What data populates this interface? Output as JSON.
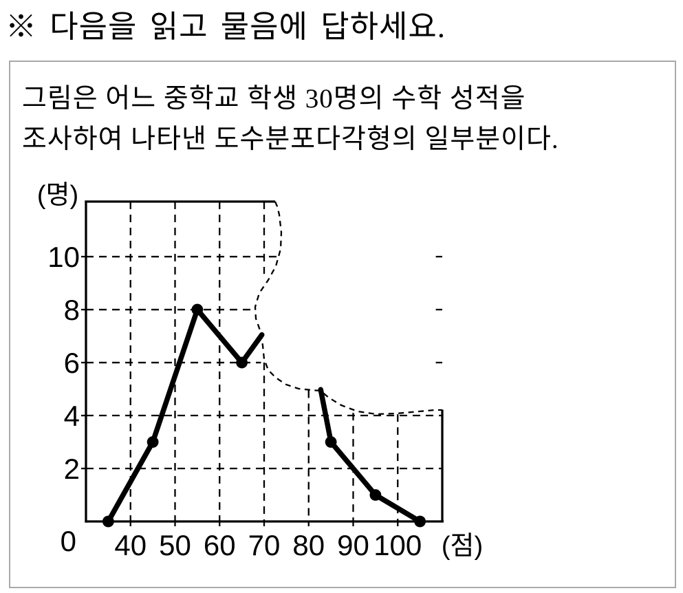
{
  "heading": {
    "text": "※ 다음을 읽고 물음에 답하세요."
  },
  "problem_box": {
    "line1": "그림은 어느 중학교 학생 30명의 수학 성적을",
    "line2": "조사하여 나타낸 도수분포다각형의 일부분이다."
  },
  "chart_data": {
    "type": "line",
    "subtype": "frequency-polygon-partially-torn",
    "xlabel": "(점)",
    "ylabel": "(명)",
    "origin_label": "0",
    "x_ticks": [
      40,
      50,
      60,
      70,
      80,
      90,
      100
    ],
    "y_ticks": [
      2,
      4,
      6,
      8,
      10
    ],
    "xlim": [
      30,
      110
    ],
    "ylim": [
      0,
      12
    ],
    "grid": "dashed",
    "points": [
      [
        35,
        0
      ],
      [
        45,
        3
      ],
      [
        55,
        8
      ],
      [
        65,
        6
      ],
      [
        85,
        3
      ],
      [
        95,
        1
      ],
      [
        105,
        0
      ]
    ],
    "visible_segments": [
      {
        "points": [
          [
            35,
            0
          ],
          [
            45,
            3
          ],
          [
            55,
            8
          ],
          [
            65,
            6
          ],
          [
            69.5,
            7.05
          ]
        ],
        "dots": [
          [
            35,
            0
          ],
          [
            45,
            3
          ],
          [
            55,
            8
          ],
          [
            65,
            6
          ]
        ],
        "note": "line rises past (65,6) and is cut off by the torn edge near score 70"
      },
      {
        "points": [
          [
            82.7,
            4.98
          ],
          [
            85,
            3
          ],
          [
            95,
            1
          ],
          [
            105,
            0
          ]
        ],
        "dots": [
          [
            85,
            3
          ],
          [
            95,
            1
          ],
          [
            105,
            0
          ]
        ],
        "note": "line emerges from the torn edge at about frequency 5 before (85,3)"
      }
    ],
    "torn_region_note": "dashed torn-paper edge hides the 70-80 score class and the upper-right part of the grid",
    "total_students_from_text": 30
  }
}
